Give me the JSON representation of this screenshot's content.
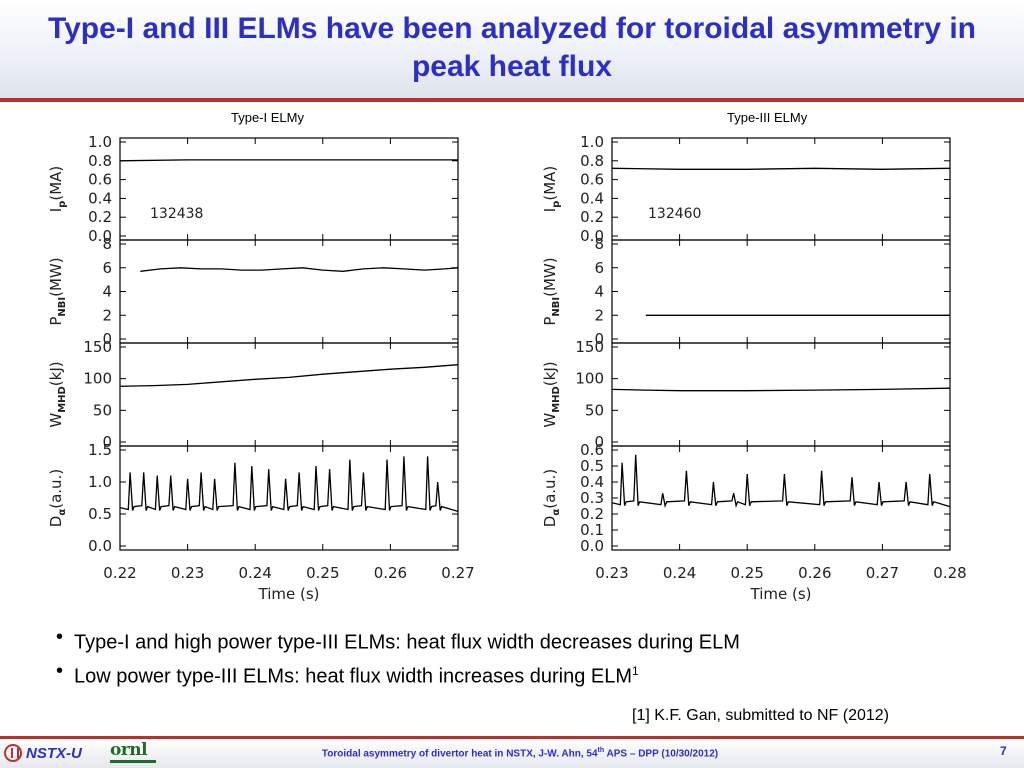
{
  "title": "Type-I and III ELMs have been analyzed for toroidal asymmetry in peak heat flux",
  "bullets": [
    {
      "text": "Type-I and high power type-III ELMs: heat flux width decreases during ELM",
      "sup": ""
    },
    {
      "text": "Low power type-III ELMs: heat flux width increases during ELM",
      "sup": "1"
    }
  ],
  "bullet_glyph": "•",
  "reference": "[1] K.F. Gan, submitted to NF (2012)",
  "footer": {
    "text_main": "Toroidal asymmetry of divertor heat in NSTX, J-W. Ahn, 54",
    "text_sup": "th",
    "text_tail": " APS – DPP (10/30/2012)",
    "page": "7",
    "logo_left": "NSTX-U",
    "logo_right": "ornl"
  },
  "colors": {
    "title": "#2b2fc8",
    "accent_rule": "#b7322c",
    "plot_line": "#000000"
  },
  "chart_data": [
    {
      "type": "line",
      "title": "Type-I ELMy",
      "shot": "132438",
      "xlabel": "Time (s)",
      "xlim": [
        0.22,
        0.27
      ],
      "xticks": [
        0.22,
        0.23,
        0.24,
        0.25,
        0.26,
        0.27
      ],
      "xtick_labels": [
        "0.22",
        "0.23",
        "0.24",
        "0.25",
        "0.26",
        "0.27"
      ],
      "panels": [
        {
          "ylabel": "Ip(MA)",
          "ylabel_main": "I",
          "ylabel_sub": "p",
          "ylabel_tail": "(MA)",
          "ylim": [
            0,
            1.0
          ],
          "yticks": [
            0,
            0.2,
            0.4,
            0.6,
            0.8,
            1.0
          ],
          "ytick_labels": [
            "0.0",
            "0.2",
            "0.4",
            "0.6",
            "0.8",
            "1.0"
          ],
          "x": [
            0.22,
            0.23,
            0.24,
            0.25,
            0.26,
            0.27
          ],
          "y": [
            0.8,
            0.81,
            0.81,
            0.81,
            0.81,
            0.81
          ]
        },
        {
          "ylabel": "PNBI(MW)",
          "ylabel_main": "P",
          "ylabel_sub": "NBI",
          "ylabel_tail": "(MW)",
          "ylim": [
            0,
            8
          ],
          "yticks": [
            0,
            2,
            4,
            6,
            8
          ],
          "ytick_labels": [
            "0",
            "2",
            "4",
            "6",
            "8"
          ],
          "x": [
            0.223,
            0.226,
            0.229,
            0.232,
            0.235,
            0.238,
            0.241,
            0.244,
            0.247,
            0.25,
            0.253,
            0.256,
            0.259,
            0.262,
            0.265,
            0.268,
            0.27
          ],
          "y": [
            5.7,
            5.9,
            6.0,
            5.9,
            5.9,
            5.8,
            5.8,
            5.9,
            6.0,
            5.8,
            5.7,
            5.9,
            6.0,
            5.9,
            5.8,
            5.9,
            6.0
          ]
        },
        {
          "ylabel": "WMHD(kJ)",
          "ylabel_main": "W",
          "ylabel_sub": "MHD",
          "ylabel_tail": "(kJ)",
          "ylim": [
            0,
            150
          ],
          "yticks": [
            0,
            50,
            100,
            150
          ],
          "ytick_labels": [
            "0",
            "50",
            "100",
            "150"
          ],
          "x": [
            0.22,
            0.225,
            0.23,
            0.235,
            0.24,
            0.245,
            0.25,
            0.255,
            0.26,
            0.265,
            0.27
          ],
          "y": [
            88,
            89,
            91,
            95,
            99,
            102,
            107,
            111,
            115,
            118,
            122
          ]
        },
        {
          "ylabel": "Dα(a.u.)",
          "ylabel_main": "D",
          "ylabel_sub": "α",
          "ylabel_tail": "(a.u.)",
          "ylim": [
            0,
            1.5
          ],
          "yticks": [
            0,
            0.5,
            1.0,
            1.5
          ],
          "ytick_labels": [
            "0.0",
            "0.5",
            "1.0",
            "1.5"
          ],
          "baseline": 0.6,
          "spikes": [
            [
              0.2215,
              1.15
            ],
            [
              0.2235,
              1.15
            ],
            [
              0.2255,
              1.1
            ],
            [
              0.2275,
              1.1
            ],
            [
              0.23,
              1.05
            ],
            [
              0.232,
              1.15
            ],
            [
              0.234,
              1.05
            ],
            [
              0.237,
              1.3
            ],
            [
              0.2395,
              1.25
            ],
            [
              0.242,
              1.2
            ],
            [
              0.2445,
              1.05
            ],
            [
              0.2465,
              1.15
            ],
            [
              0.249,
              1.25
            ],
            [
              0.251,
              1.2
            ],
            [
              0.254,
              1.35
            ],
            [
              0.256,
              1.15
            ],
            [
              0.2595,
              1.35
            ],
            [
              0.262,
              1.4
            ],
            [
              0.2655,
              1.4
            ],
            [
              0.267,
              1.0
            ]
          ]
        }
      ]
    },
    {
      "type": "line",
      "title": "Type-III ELMy",
      "shot": "132460",
      "xlabel": "Time (s)",
      "xlim": [
        0.23,
        0.28
      ],
      "xticks": [
        0.23,
        0.24,
        0.25,
        0.26,
        0.27,
        0.28
      ],
      "xtick_labels": [
        "0.23",
        "0.24",
        "0.25",
        "0.26",
        "0.27",
        "0.28"
      ],
      "panels": [
        {
          "ylabel": "Ip(MA)",
          "ylabel_main": "I",
          "ylabel_sub": "p",
          "ylabel_tail": "(MA)",
          "ylim": [
            0,
            1.0
          ],
          "yticks": [
            0,
            0.2,
            0.4,
            0.6,
            0.8,
            1.0
          ],
          "ytick_labels": [
            "0.0",
            "0.2",
            "0.4",
            "0.6",
            "0.8",
            "1.0"
          ],
          "x": [
            0.23,
            0.24,
            0.25,
            0.26,
            0.27,
            0.28
          ],
          "y": [
            0.72,
            0.71,
            0.71,
            0.72,
            0.71,
            0.72
          ]
        },
        {
          "ylabel": "PNBI(MW)",
          "ylabel_main": "P",
          "ylabel_sub": "NBI",
          "ylabel_tail": "(MW)",
          "ylim": [
            0,
            8
          ],
          "yticks": [
            0,
            2,
            4,
            6,
            8
          ],
          "ytick_labels": [
            "0",
            "2",
            "4",
            "6",
            "8"
          ],
          "x": [
            0.235,
            0.245,
            0.255,
            0.265,
            0.28
          ],
          "y": [
            2.0,
            2.0,
            2.0,
            2.0,
            2.0
          ]
        },
        {
          "ylabel": "WMHD(kJ)",
          "ylabel_main": "W",
          "ylabel_sub": "MHD",
          "ylabel_tail": "(kJ)",
          "ylim": [
            0,
            150
          ],
          "yticks": [
            0,
            50,
            100,
            150
          ],
          "ytick_labels": [
            "0",
            "50",
            "100",
            "150"
          ],
          "x": [
            0.23,
            0.235,
            0.24,
            0.25,
            0.26,
            0.27,
            0.28
          ],
          "y": [
            83,
            82,
            81,
            81,
            82,
            83,
            85
          ]
        },
        {
          "ylabel": "Dα(a.u.)",
          "ylabel_main": "D",
          "ylabel_sub": "α",
          "ylabel_tail": "(a.u.)",
          "ylim": [
            0,
            0.6
          ],
          "yticks": [
            0,
            0.1,
            0.2,
            0.3,
            0.4,
            0.5,
            0.6
          ],
          "ytick_labels": [
            "0.0",
            "0.1",
            "0.2",
            "0.3",
            "0.4",
            "0.5",
            "0.6"
          ],
          "baseline": 0.27,
          "spikes": [
            [
              0.2315,
              0.52
            ],
            [
              0.2335,
              0.57
            ],
            [
              0.2375,
              0.33
            ],
            [
              0.241,
              0.47
            ],
            [
              0.245,
              0.4
            ],
            [
              0.248,
              0.33
            ],
            [
              0.25,
              0.45
            ],
            [
              0.2555,
              0.45
            ],
            [
              0.261,
              0.47
            ],
            [
              0.2655,
              0.43
            ],
            [
              0.2695,
              0.4
            ],
            [
              0.2735,
              0.4
            ],
            [
              0.277,
              0.45
            ]
          ]
        }
      ]
    }
  ]
}
